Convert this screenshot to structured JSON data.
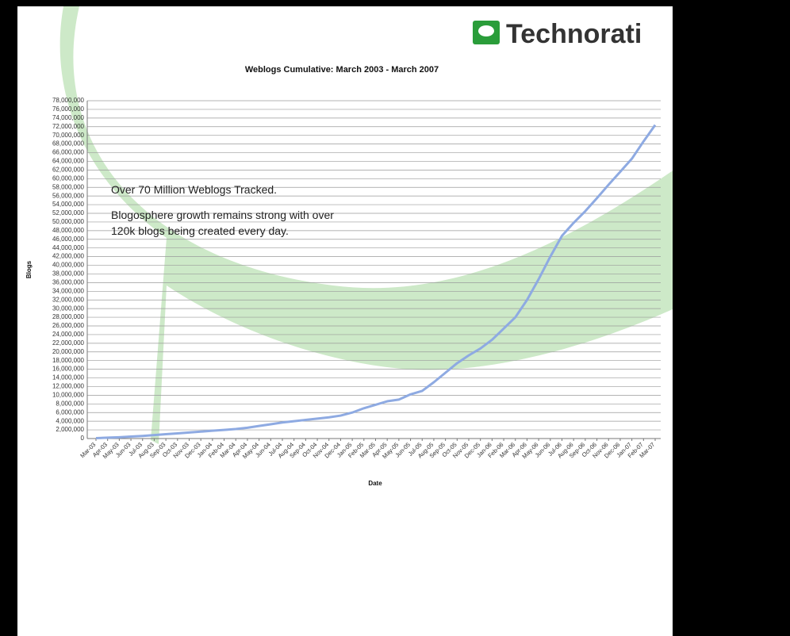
{
  "logo": "Technorati",
  "chart_data": {
    "type": "line",
    "title": "Weblogs Cumulative: March 2003 - March 2007",
    "x_label": "Date",
    "y_label": "Blogs",
    "annotations": [
      "Over 70 Million Weblogs Tracked.",
      "Blogosphere growth remains strong with over",
      "120k blogs being created every day."
    ],
    "categories": [
      "Mar-03",
      "Apr-03",
      "May-03",
      "Jun-03",
      "Jul-03",
      "Aug-03",
      "Sep-03",
      "Oct-03",
      "Nov-03",
      "Dec-03",
      "Jan-04",
      "Feb-04",
      "Mar-04",
      "Apr-04",
      "May-04",
      "Jun-04",
      "Jul-04",
      "Aug-04",
      "Sep-04",
      "Oct-04",
      "Nov-04",
      "Dec-04",
      "Jan-05",
      "Feb-05",
      "Mar-05",
      "Apr-05",
      "May-05",
      "Jun-05",
      "Jul-05",
      "Aug-05",
      "Sep-05",
      "Oct-05",
      "Nov-05",
      "Dec-05",
      "Jan-06",
      "Feb-06",
      "Mar-06",
      "Apr-06",
      "May-06",
      "Jun-06",
      "Jul-06",
      "Aug-06",
      "Sep-06",
      "Oct-06",
      "Nov-06",
      "Dec-06",
      "Jan-07",
      "Feb-07",
      "Mar-07"
    ],
    "series": [
      {
        "name": "Blogs",
        "color": "#8eaae2",
        "values": [
          100000,
          200000,
          300000,
          450000,
          600000,
          800000,
          1000000,
          1200000,
          1400000,
          1600000,
          1800000,
          2000000,
          2200000,
          2500000,
          2900000,
          3300000,
          3700000,
          4000000,
          4300000,
          4600000,
          4900000,
          5300000,
          6000000,
          7000000,
          7800000,
          8600000,
          9000000,
          10200000,
          11000000,
          13000000,
          15200000,
          17400000,
          19200000,
          20800000,
          22800000,
          25400000,
          28000000,
          32000000,
          36800000,
          42000000,
          46800000,
          49800000,
          52500000,
          55500000,
          58600000,
          61600000,
          64600000,
          68600000,
          72400000
        ]
      }
    ],
    "ylim": [
      0,
      78000000
    ],
    "yticks": [
      {
        "value": 0,
        "label": "0"
      },
      {
        "value": 2000000,
        "label": "2,000,000"
      },
      {
        "value": 4000000,
        "label": "4,000,000"
      },
      {
        "value": 6000000,
        "label": "6,000,000"
      },
      {
        "value": 8000000,
        "label": "8,000,000"
      },
      {
        "value": 10000000,
        "label": "10,000,000"
      },
      {
        "value": 12000000,
        "label": "12,000,000"
      },
      {
        "value": 14000000,
        "label": "14,000,000"
      },
      {
        "value": 16000000,
        "label": "16,000,000"
      },
      {
        "value": 18000000,
        "label": "18,000,000"
      },
      {
        "value": 20000000,
        "label": "20,000,000"
      },
      {
        "value": 22000000,
        "label": "22,000,000"
      },
      {
        "value": 24000000,
        "label": "24,000,000"
      },
      {
        "value": 26000000,
        "label": "26,000,000"
      },
      {
        "value": 28000000,
        "label": "28,000,000"
      },
      {
        "value": 30000000,
        "label": "30,000,000"
      },
      {
        "value": 32000000,
        "label": "32,000,000"
      },
      {
        "value": 34000000,
        "label": "34,000,000"
      },
      {
        "value": 36000000,
        "label": "36,000,000"
      },
      {
        "value": 38000000,
        "label": "38,000,000"
      },
      {
        "value": 40000000,
        "label": "40,000,000"
      },
      {
        "value": 42000000,
        "label": "42,000,000"
      },
      {
        "value": 44000000,
        "label": "44,000,000"
      },
      {
        "value": 46000000,
        "label": "46,000,000"
      },
      {
        "value": 48000000,
        "label": "48,000,000"
      },
      {
        "value": 50000000,
        "label": "50,000,000"
      },
      {
        "value": 52000000,
        "label": "52,000,000"
      },
      {
        "value": 54000000,
        "label": "54,000,000"
      },
      {
        "value": 56000000,
        "label": "56,000,000"
      },
      {
        "value": 58000000,
        "label": "58,000,000"
      },
      {
        "value": 60000000,
        "label": "60,000,000"
      },
      {
        "value": 62000000,
        "label": "62,000,000"
      },
      {
        "value": 64000000,
        "label": "64,000,000"
      },
      {
        "value": 66000000,
        "label": "66,000,000"
      },
      {
        "value": 68000000,
        "label": "68,000,000"
      },
      {
        "value": 70000000,
        "label": "70,000,000"
      },
      {
        "value": 72000000,
        "label": "72,000,000"
      },
      {
        "value": 74000000,
        "label": "74,000,000"
      },
      {
        "value": 76000000,
        "label": "76,000,000"
      },
      {
        "value": 78000000,
        "label": "78,000,000"
      }
    ],
    "grid": true
  }
}
